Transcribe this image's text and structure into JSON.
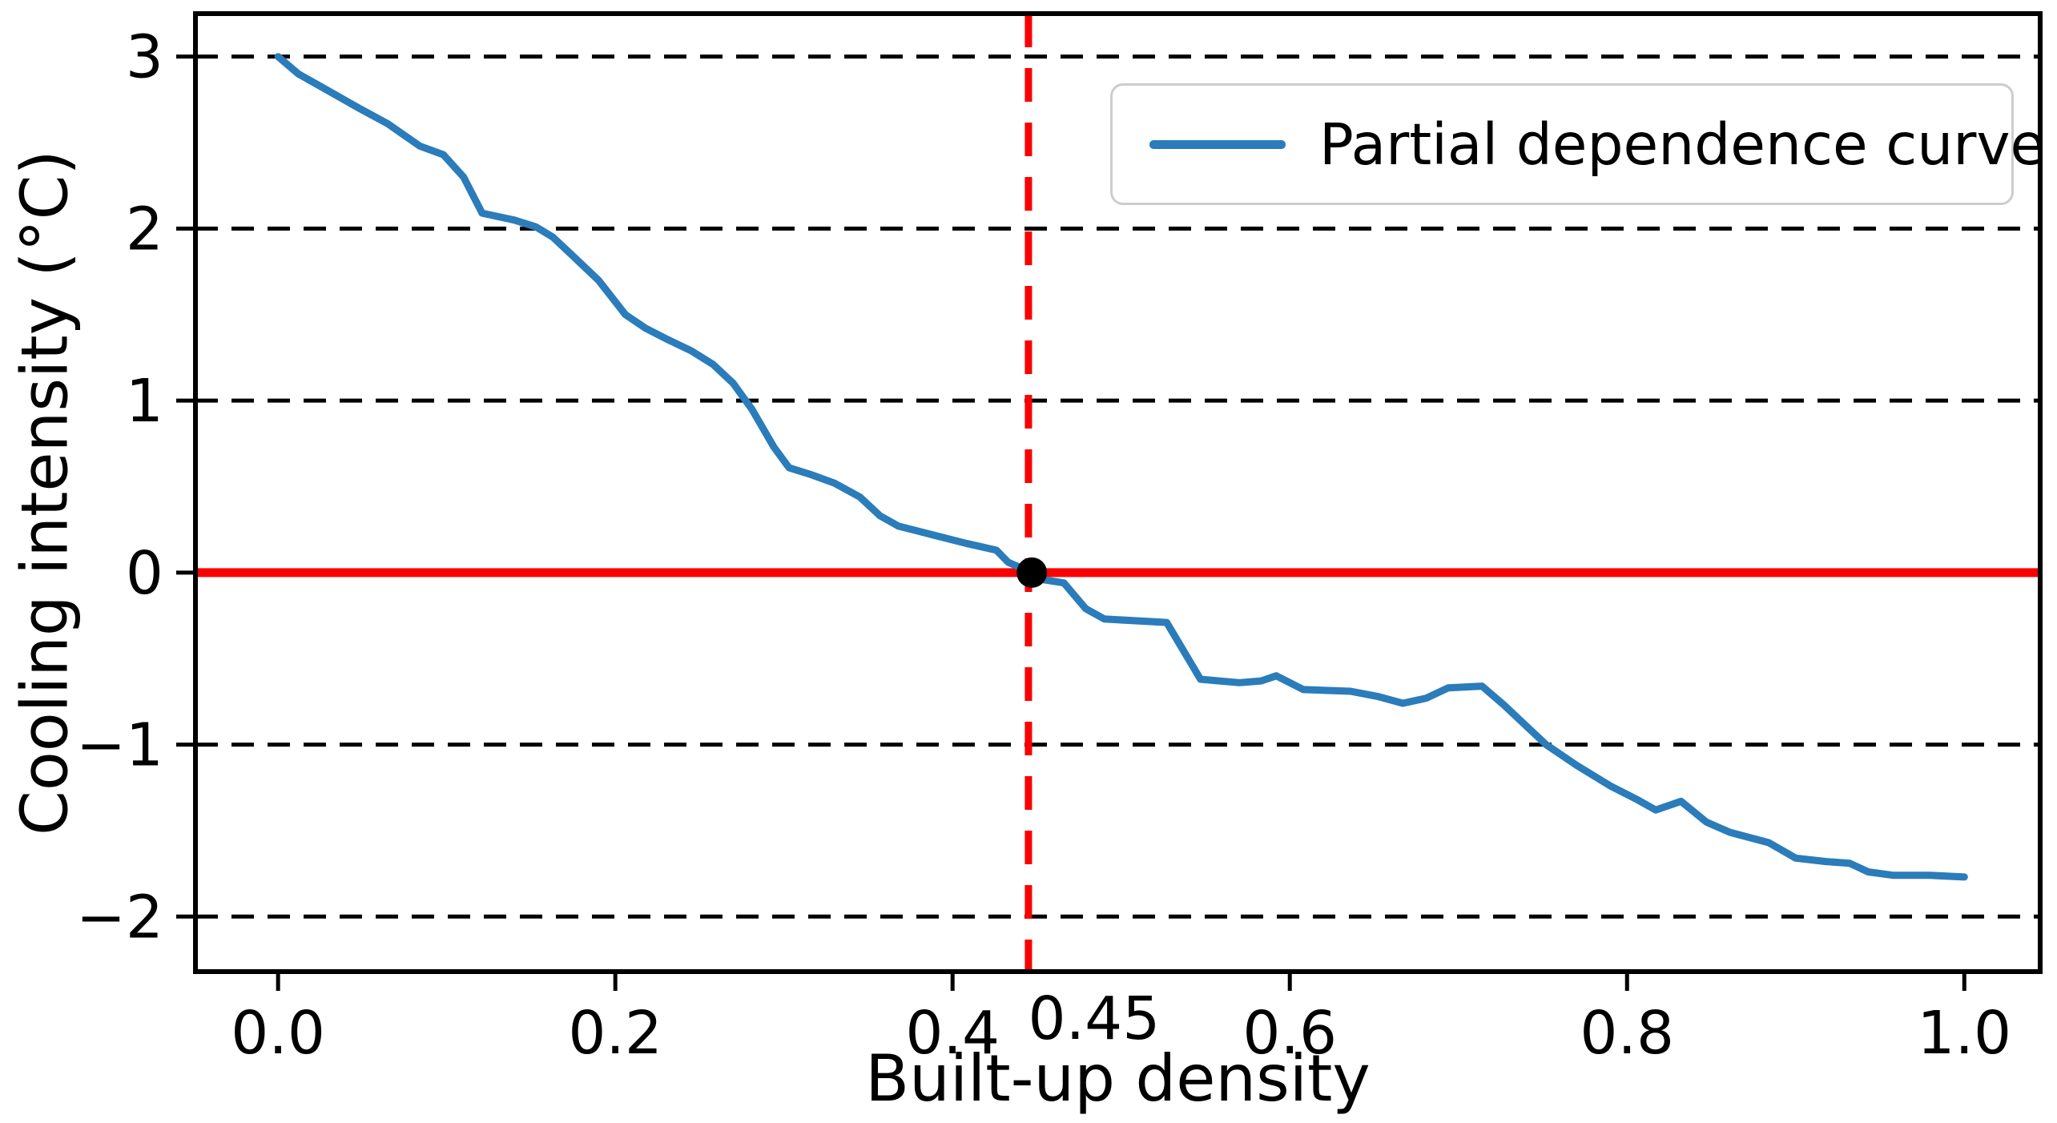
{
  "figure": {
    "background": "#ffffff",
    "text_color": "#000000"
  },
  "chart_data": {
    "type": "line",
    "title": "",
    "xlabel": "Built-up density",
    "ylabel": "Cooling intensity (°C)",
    "xlim": [
      -0.049,
      1.045
    ],
    "ylim": [
      -2.32,
      3.25
    ],
    "x_ticks": [
      0.0,
      0.2,
      0.4,
      0.6,
      0.8,
      1.0
    ],
    "x_tick_labels": [
      "0.0",
      "0.2",
      "0.4",
      "0.6",
      "0.8",
      "1.0"
    ],
    "y_ticks": [
      3,
      2,
      1,
      0,
      -1,
      -2
    ],
    "y_tick_labels": [
      "3",
      "2",
      "1",
      "0",
      "−1",
      "−2"
    ],
    "grid": "horizontal-dashed-black",
    "legend_position": "upper right",
    "series": [
      {
        "name": "Partial dependence curve",
        "color": "#2b7cba",
        "points": [
          [
            0.0,
            3.0
          ],
          [
            0.012,
            2.9
          ],
          [
            0.03,
            2.8
          ],
          [
            0.048,
            2.7
          ],
          [
            0.065,
            2.61
          ],
          [
            0.084,
            2.48
          ],
          [
            0.098,
            2.43
          ],
          [
            0.11,
            2.3
          ],
          [
            0.121,
            2.09
          ],
          [
            0.14,
            2.05
          ],
          [
            0.153,
            2.01
          ],
          [
            0.163,
            1.95
          ],
          [
            0.175,
            1.84
          ],
          [
            0.19,
            1.7
          ],
          [
            0.206,
            1.5
          ],
          [
            0.218,
            1.42
          ],
          [
            0.23,
            1.36
          ],
          [
            0.245,
            1.29
          ],
          [
            0.258,
            1.21
          ],
          [
            0.27,
            1.1
          ],
          [
            0.281,
            0.95
          ],
          [
            0.294,
            0.73
          ],
          [
            0.303,
            0.61
          ],
          [
            0.316,
            0.57
          ],
          [
            0.33,
            0.52
          ],
          [
            0.345,
            0.44
          ],
          [
            0.357,
            0.33
          ],
          [
            0.368,
            0.27
          ],
          [
            0.388,
            0.22
          ],
          [
            0.408,
            0.17
          ],
          [
            0.426,
            0.13
          ],
          [
            0.433,
            0.06
          ],
          [
            0.447,
            0.0
          ],
          [
            0.453,
            -0.04
          ],
          [
            0.466,
            -0.06
          ],
          [
            0.479,
            -0.21
          ],
          [
            0.49,
            -0.27
          ],
          [
            0.527,
            -0.29
          ],
          [
            0.547,
            -0.62
          ],
          [
            0.57,
            -0.64
          ],
          [
            0.583,
            -0.63
          ],
          [
            0.592,
            -0.6
          ],
          [
            0.608,
            -0.68
          ],
          [
            0.636,
            -0.69
          ],
          [
            0.652,
            -0.72
          ],
          [
            0.667,
            -0.76
          ],
          [
            0.681,
            -0.73
          ],
          [
            0.694,
            -0.67
          ],
          [
            0.714,
            -0.66
          ],
          [
            0.727,
            -0.77
          ],
          [
            0.74,
            -0.89
          ],
          [
            0.752,
            -1.0
          ],
          [
            0.77,
            -1.12
          ],
          [
            0.79,
            -1.24
          ],
          [
            0.806,
            -1.32
          ],
          [
            0.817,
            -1.38
          ],
          [
            0.832,
            -1.33
          ],
          [
            0.847,
            -1.45
          ],
          [
            0.861,
            -1.51
          ],
          [
            0.884,
            -1.57
          ],
          [
            0.9,
            -1.66
          ],
          [
            0.918,
            -1.68
          ],
          [
            0.932,
            -1.69
          ],
          [
            0.943,
            -1.74
          ],
          [
            0.958,
            -1.76
          ],
          [
            0.98,
            -1.76
          ],
          [
            1.0,
            -1.77
          ]
        ]
      }
    ],
    "reference_lines": {
      "zero_line": {
        "axis": "y",
        "value": 0,
        "color": "#fb0000",
        "style": "solid"
      },
      "threshold_line": {
        "axis": "x",
        "value": 0.445,
        "label": "0.45",
        "color": "#fb0000",
        "style": "dashed"
      }
    },
    "marker_point": {
      "x": 0.447,
      "y": 0.0,
      "color": "#000000"
    }
  }
}
